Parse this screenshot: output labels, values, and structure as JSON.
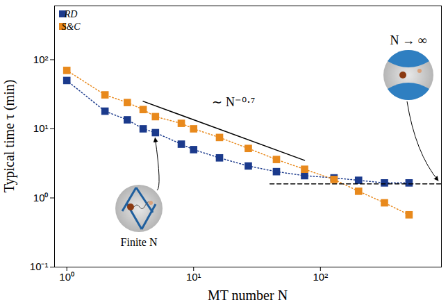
{
  "chart_data": {
    "type": "line",
    "log": true,
    "x_label": "MT number N",
    "y_label": "Typical time τ (min)",
    "xlim": [
      0.8,
      900
    ],
    "ylim": [
      0.1,
      600
    ],
    "xticks": [
      {
        "value": 1,
        "label": "10⁰"
      },
      {
        "value": 10,
        "label": "10¹"
      },
      {
        "value": 100,
        "label": "10²"
      }
    ],
    "yticks": [
      {
        "value": 0.1,
        "label": "10⁻¹"
      },
      {
        "value": 1,
        "label": "10⁰"
      },
      {
        "value": 10,
        "label": "10¹"
      },
      {
        "value": 100,
        "label": "10²"
      }
    ],
    "legend": "top-left",
    "marker": "square",
    "line_style": "dotted",
    "x": [
      1,
      2,
      3,
      4,
      5,
      8,
      10,
      16,
      27,
      45,
      75,
      128,
      200,
      320,
      500
    ],
    "series": [
      {
        "name": "RD",
        "color": "#1b3a8c",
        "values": [
          50,
          18,
          13.5,
          10,
          8.8,
          6,
          5,
          3.8,
          2.9,
          2.4,
          2.1,
          1.95,
          1.8,
          1.65,
          1.65
        ]
      },
      {
        "name": "S&C",
        "color": "#e8891c",
        "values": [
          70,
          31,
          24,
          19,
          15,
          12,
          10,
          7.5,
          5.2,
          3.6,
          2.6,
          1.85,
          1.25,
          0.85,
          0.57
        ]
      }
    ],
    "trend": {
      "x": [
        4,
        75
      ],
      "y": [
        25,
        3.5
      ],
      "label": "∼ N⁻⁰·⁷",
      "label_x": 14,
      "label_y": 24
    },
    "plateau": {
      "x": [
        40,
        900
      ],
      "y": 1.6
    },
    "annotations": [
      "Finite N",
      "N → ∞"
    ]
  }
}
